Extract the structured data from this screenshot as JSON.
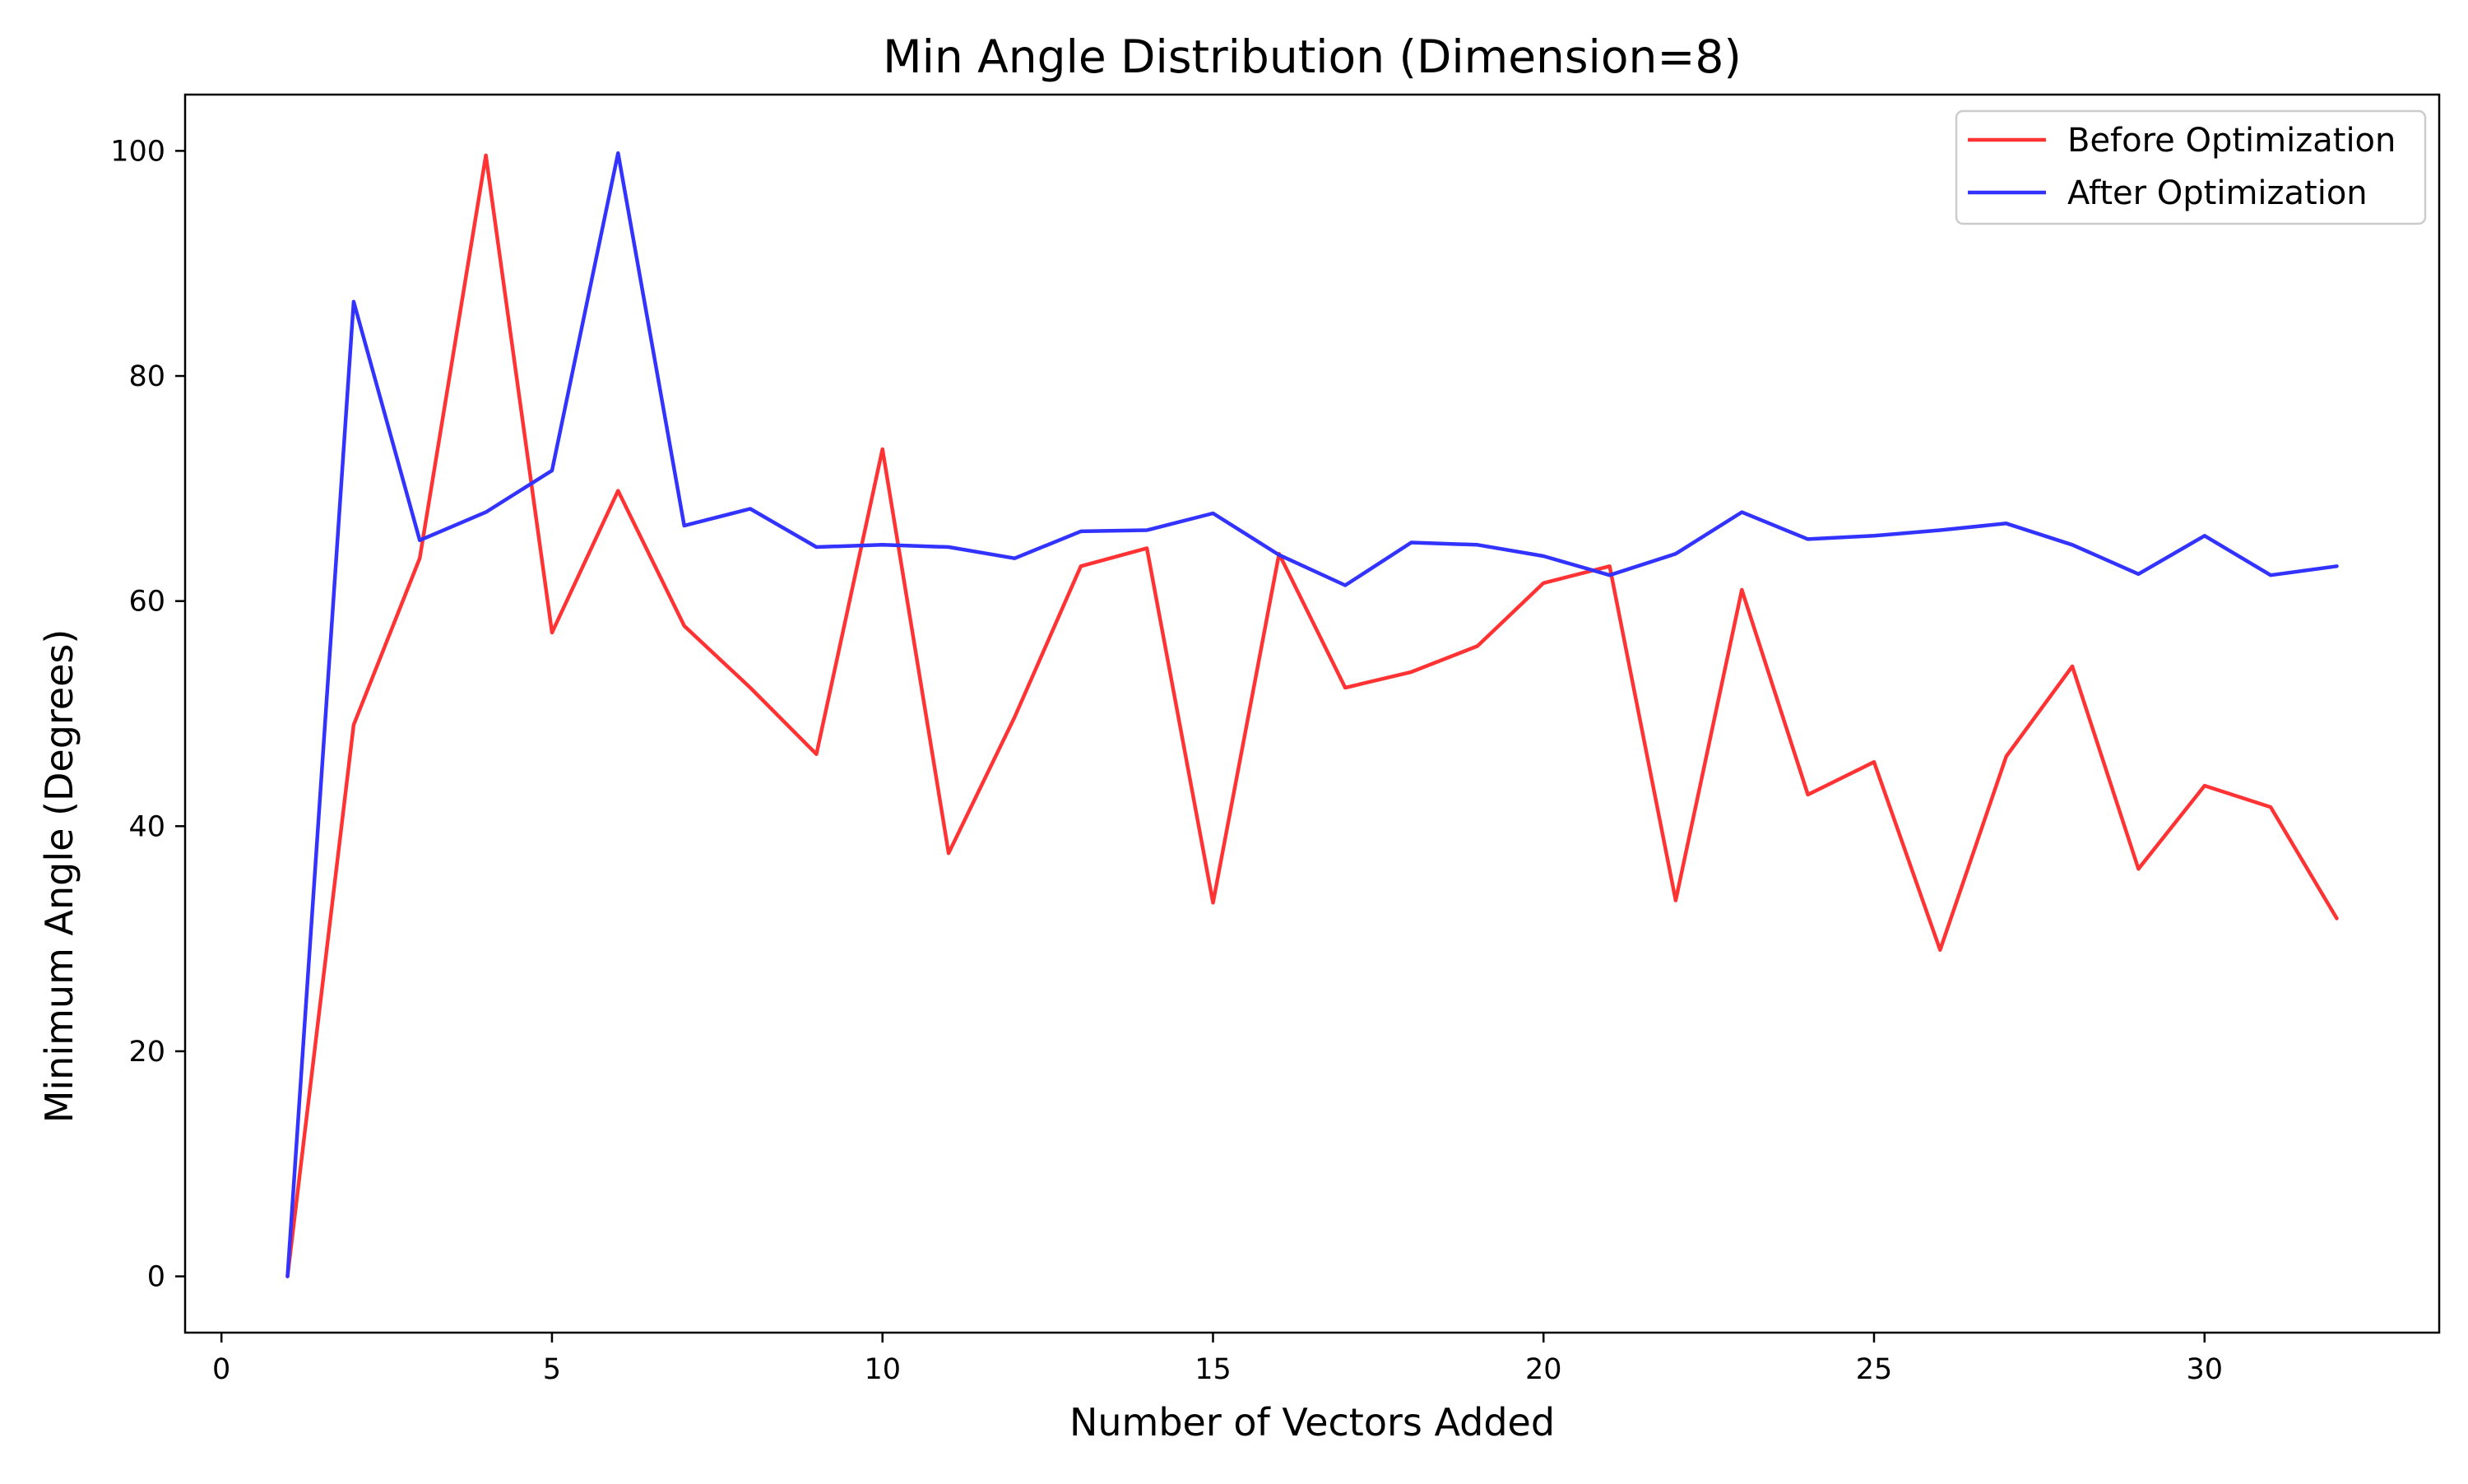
{
  "chart_data": {
    "type": "line",
    "title": "Min Angle Distribution (Dimension=8)",
    "xlabel": "Number of Vectors Added",
    "ylabel": "Minimum Angle (Degrees)",
    "xlim": [
      -0.55,
      33.55
    ],
    "ylim": [
      -5,
      105
    ],
    "xticks": [
      0,
      5,
      10,
      15,
      20,
      25,
      30
    ],
    "yticks": [
      0,
      20,
      40,
      60,
      80,
      100
    ],
    "grid": false,
    "legend_position": "top-right",
    "x": [
      1,
      2,
      3,
      4,
      5,
      6,
      7,
      8,
      9,
      10,
      11,
      12,
      13,
      14,
      15,
      16,
      17,
      18,
      19,
      20,
      21,
      22,
      23,
      24,
      25,
      26,
      27,
      28,
      29,
      30,
      31,
      32
    ],
    "series": [
      {
        "name": "Before Optimization",
        "color": "#ff3333",
        "values": [
          0,
          49.0,
          63.8,
          99.6,
          57.2,
          69.8,
          57.8,
          52.3,
          46.4,
          73.5,
          37.6,
          49.7,
          63.1,
          64.7,
          33.2,
          64.2,
          52.3,
          53.7,
          56.0,
          61.6,
          63.1,
          33.4,
          61.0,
          42.8,
          45.7,
          29.0,
          46.2,
          54.2,
          36.2,
          43.6,
          41.7,
          31.8
        ]
      },
      {
        "name": "After Optimization",
        "color": "#3333ff",
        "values": [
          0,
          86.6,
          65.4,
          67.9,
          71.6,
          99.8,
          66.7,
          68.2,
          64.8,
          65.0,
          64.8,
          63.8,
          66.2,
          66.3,
          67.8,
          64.1,
          61.4,
          65.2,
          65.0,
          64.0,
          62.3,
          64.2,
          67.9,
          65.5,
          65.8,
          66.3,
          66.9,
          65.0,
          62.4,
          65.8,
          62.3,
          63.1
        ]
      }
    ]
  }
}
